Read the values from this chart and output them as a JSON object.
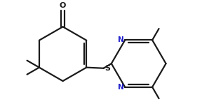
{
  "bg_color": "#ffffff",
  "line_color": "#1a1a1a",
  "atom_color_N": "#2020cc",
  "line_width": 1.6,
  "font_size_atom": 7.5,
  "fig_width": 2.88,
  "fig_height": 1.49,
  "dpi": 100,
  "xlim": [
    -1.0,
    11.5
  ],
  "ylim": [
    1.2,
    7.8
  ]
}
